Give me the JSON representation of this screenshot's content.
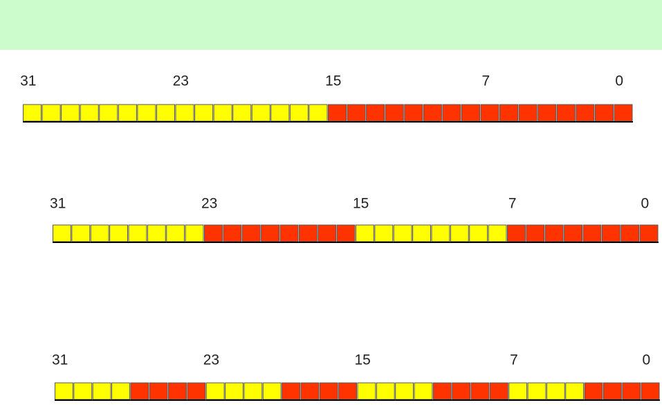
{
  "header": {
    "color": "#ccfccc"
  },
  "registers": [
    {
      "bit_labels": [
        31,
        23,
        15,
        7,
        0
      ],
      "cell_colors": [
        "#ffff00",
        "#ffff00",
        "#ffff00",
        "#ffff00",
        "#ffff00",
        "#ffff00",
        "#ffff00",
        "#ffff00",
        "#ffff00",
        "#ffff00",
        "#ffff00",
        "#ffff00",
        "#ffff00",
        "#ffff00",
        "#ffff00",
        "#ffff00",
        "#ff3300",
        "#ff3300",
        "#ff3300",
        "#ff3300",
        "#ff3300",
        "#ff3300",
        "#ff3300",
        "#ff3300",
        "#ff3300",
        "#ff3300",
        "#ff3300",
        "#ff3300",
        "#ff3300",
        "#ff3300",
        "#ff3300",
        "#ff3300"
      ]
    },
    {
      "bit_labels": [
        31,
        23,
        15,
        7,
        0
      ],
      "cell_colors": [
        "#ffff00",
        "#ffff00",
        "#ffff00",
        "#ffff00",
        "#ffff00",
        "#ffff00",
        "#ffff00",
        "#ffff00",
        "#ff3300",
        "#ff3300",
        "#ff3300",
        "#ff3300",
        "#ff3300",
        "#ff3300",
        "#ff3300",
        "#ff3300",
        "#ffff00",
        "#ffff00",
        "#ffff00",
        "#ffff00",
        "#ffff00",
        "#ffff00",
        "#ffff00",
        "#ffff00",
        "#ff3300",
        "#ff3300",
        "#ff3300",
        "#ff3300",
        "#ff3300",
        "#ff3300",
        "#ff3300",
        "#ff3300"
      ]
    },
    {
      "bit_labels": [
        31,
        23,
        15,
        7,
        0
      ],
      "cell_colors": [
        "#ffff00",
        "#ffff00",
        "#ffff00",
        "#ffff00",
        "#ff3300",
        "#ff3300",
        "#ff3300",
        "#ff3300",
        "#ffff00",
        "#ffff00",
        "#ffff00",
        "#ffff00",
        "#ff3300",
        "#ff3300",
        "#ff3300",
        "#ff3300",
        "#ffff00",
        "#ffff00",
        "#ffff00",
        "#ffff00",
        "#ff3300",
        "#ff3300",
        "#ff3300",
        "#ff3300",
        "#ffff00",
        "#ffff00",
        "#ffff00",
        "#ffff00",
        "#ff3300",
        "#ff3300",
        "#ff3300",
        "#ff3300"
      ]
    }
  ]
}
